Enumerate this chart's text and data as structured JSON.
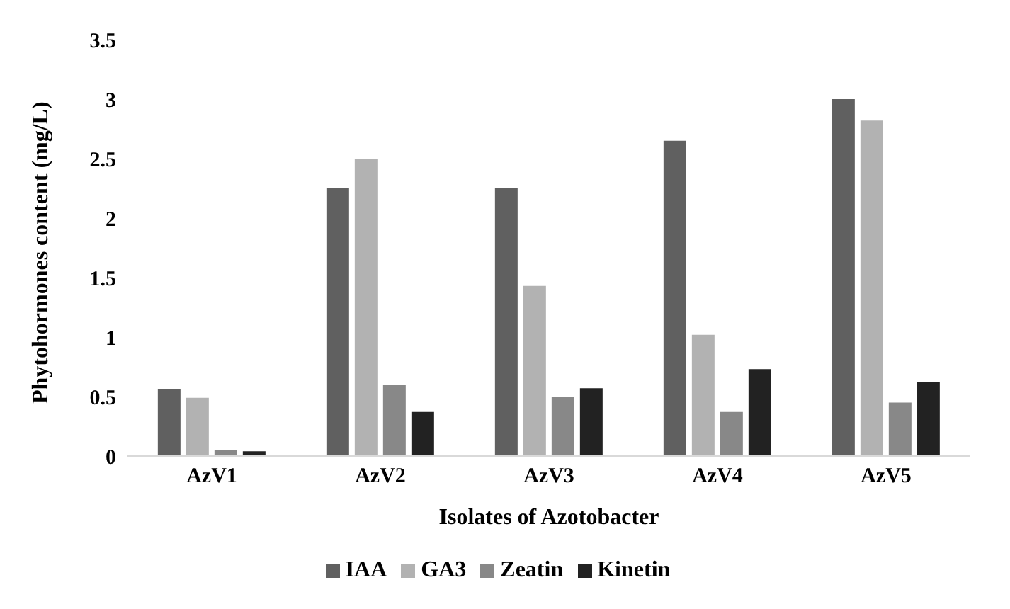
{
  "chart_data": {
    "type": "bar",
    "xlabel": "Isolates of Azotobacter",
    "ylabel": "Phytohormones content (mg/L)",
    "categories": [
      "AzV1",
      "AzV2",
      "AzV3",
      "AzV4",
      "AzV5"
    ],
    "series": [
      {
        "name": "IAA",
        "color": "#606060",
        "values": [
          0.56,
          2.25,
          2.25,
          2.65,
          3.0
        ]
      },
      {
        "name": "GA3",
        "color": "#b2b2b2",
        "values": [
          0.49,
          2.5,
          1.43,
          1.02,
          2.82
        ]
      },
      {
        "name": "Zeatin",
        "color": "#888888",
        "values": [
          0.05,
          0.6,
          0.5,
          0.37,
          0.45
        ]
      },
      {
        "name": "Kinetin",
        "color": "#222222",
        "values": [
          0.04,
          0.37,
          0.57,
          0.73,
          0.62
        ]
      }
    ],
    "ylim": [
      0,
      3.5
    ],
    "yticks": [
      0,
      0.5,
      1,
      1.5,
      2,
      2.5,
      3,
      3.5
    ],
    "grid": false,
    "legend": "bottom"
  }
}
